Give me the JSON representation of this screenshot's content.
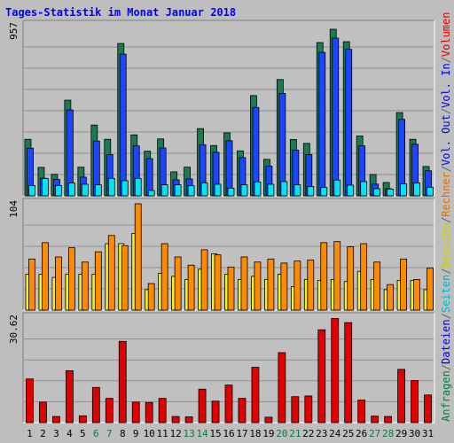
{
  "chart_data": {
    "type": "bar",
    "title": "Tages-Statistik im Monat Januar 2018",
    "categories": [
      "1",
      "2",
      "3",
      "4",
      "5",
      "6",
      "7",
      "8",
      "9",
      "10",
      "11",
      "12",
      "13",
      "14",
      "15",
      "16",
      "17",
      "18",
      "19",
      "20",
      "21",
      "22",
      "23",
      "24",
      "25",
      "26",
      "27",
      "28",
      "29",
      "30",
      "31"
    ],
    "weekend_days": [
      "6",
      "7",
      "13",
      "14",
      "20",
      "21",
      "27",
      "28"
    ],
    "panels": [
      {
        "id": "top",
        "ymax_label": "957",
        "ymax": 957,
        "series": [
          {
            "key": "anfragen",
            "color": "#1a7a52",
            "values": [
              318,
              160,
              121,
              538,
              161,
              398,
              318,
              857,
              343,
              251,
              320,
              135,
              161,
              378,
              283,
              354,
              253,
              564,
              205,
              654,
              317,
              295,
              862,
              937,
              867,
              337,
              120,
              75,
              468,
              318,
              165
            ]
          },
          {
            "key": "dateien",
            "color": "#1b45ff",
            "values": [
              268,
              99,
              92,
              483,
              105,
              308,
              232,
              797,
              281,
              209,
              269,
              90,
              95,
              287,
              245,
              310,
              215,
              497,
              167,
              576,
              257,
              232,
              807,
              887,
              824,
              281,
              66,
              40,
              430,
              290,
              141
            ]
          },
          {
            "key": "seiten",
            "color": "#00e4f4",
            "values": [
              58,
              97,
              58,
              72,
              65,
              62,
              98,
              85,
              98,
              30,
              62,
              62,
              57,
              73,
              65,
              43,
              62,
              78,
              65,
              80,
              62,
              52,
              47,
              89,
              60,
              80,
              40,
              38,
              67,
              72,
              48
            ]
          }
        ]
      },
      {
        "id": "middle",
        "ymax_label": "104",
        "ymax": 104,
        "series": [
          {
            "key": "besuche",
            "color": "#f2f224",
            "values": [
              35,
              35,
              32,
              35,
              35,
              35,
              65,
              65,
              75,
              20,
              36,
              33,
              30,
              40,
              55,
              35,
              30,
              33,
              30,
              35,
              23,
              30,
              29,
              30,
              28,
              38,
              30,
              20,
              29,
              29,
              20
            ]
          },
          {
            "key": "rechner",
            "color": "#ff8a00",
            "values": [
              50,
              66,
              52,
              61,
              47,
              57,
              73,
              63,
              104,
              26,
              65,
              52,
              44,
              59,
              54,
              42,
              52,
              47,
              50,
              46,
              48,
              49,
              66,
              67,
              62,
              65,
              47,
              25,
              50,
              30,
              41
            ]
          }
        ]
      },
      {
        "id": "bottom",
        "ymax_label": "30.62",
        "ymax": 30.62,
        "series": [
          {
            "key": "volumen",
            "color": "#e00000",
            "values": [
              12.8,
              6.0,
              1.8,
              15.2,
              2.0,
              10.3,
              7.1,
              23.8,
              6.0,
              5.9,
              7.1,
              1.8,
              1.7,
              9.8,
              6.3,
              11.0,
              7.1,
              16.2,
              1.6,
              20.5,
              7.6,
              7.8,
              27.2,
              30.5,
              29.3,
              6.6,
              1.9,
              1.8,
              15.6,
              12.3,
              8.1
            ]
          }
        ]
      }
    ],
    "legend": [
      {
        "text": "Anfragen",
        "color": "#008040"
      },
      {
        "text": "/",
        "color": "#666666"
      },
      {
        "text": "Dateien",
        "color": "#0000d8"
      },
      {
        "text": "/",
        "color": "#666666"
      },
      {
        "text": "Seiten",
        "color": "#00b8c8"
      },
      {
        "text": "/",
        "color": "#666666"
      },
      {
        "text": "Besuche",
        "color": "#d0d000"
      },
      {
        "text": "/",
        "color": "#666666"
      },
      {
        "text": "Rechner",
        "color": "#e07000"
      },
      {
        "text": "/",
        "color": "#666666"
      },
      {
        "text": "Vol. Out",
        "color": "#0000d8"
      },
      {
        "text": "/",
        "color": "#666666"
      },
      {
        "text": "Vol. In",
        "color": "#0000d8"
      },
      {
        "text": "/",
        "color": "#666666"
      },
      {
        "text": "Volumen",
        "color": "#e00000"
      }
    ],
    "grid": true,
    "legend_placement": "right-vertical"
  },
  "colors": {
    "title": "#0000ff",
    "panel_bg": "#c0c0c0",
    "grid": "#909090",
    "weekday_label": "#000000",
    "weekend_label": "#008040"
  }
}
